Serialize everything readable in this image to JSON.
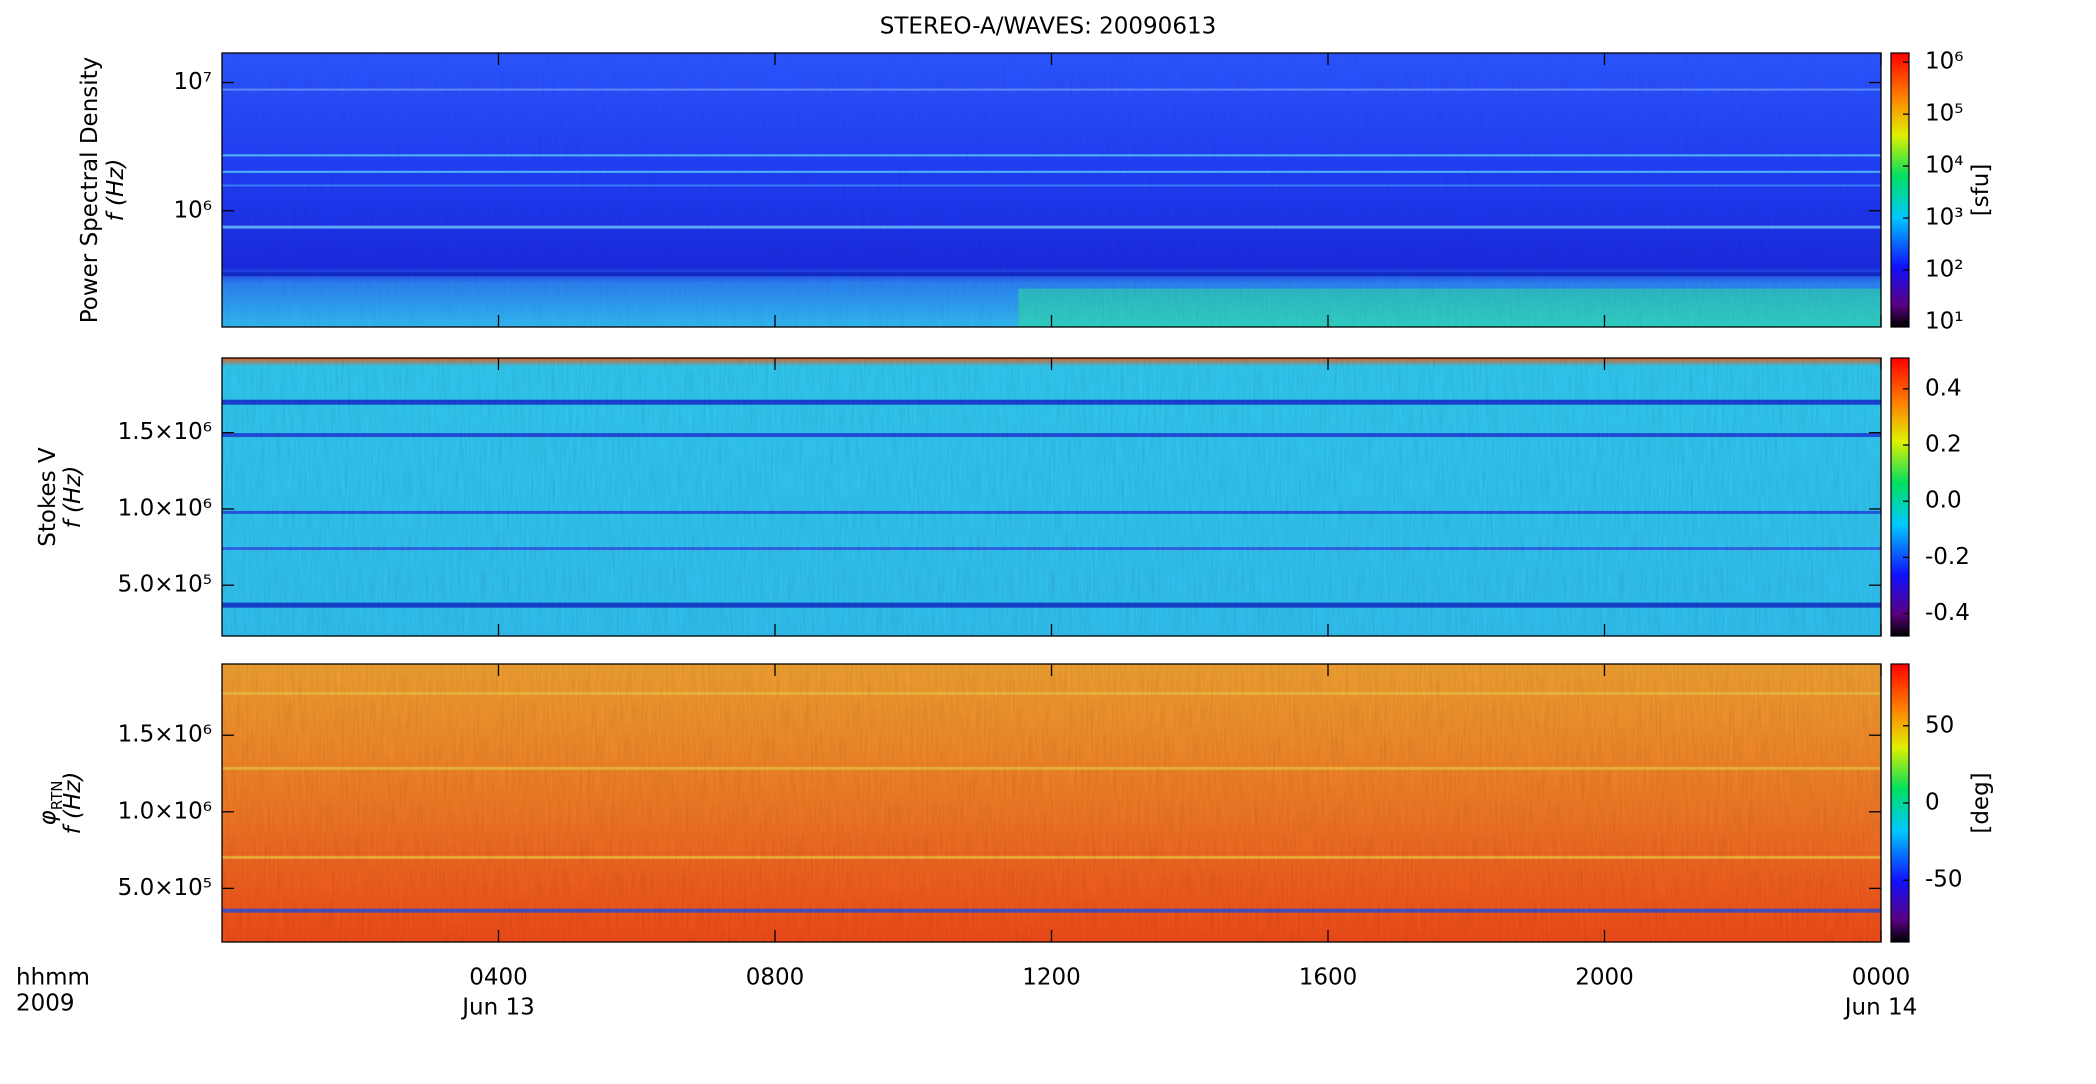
{
  "title": "STEREO-A/WAVES: 20090613",
  "xaxis": {
    "xlim": [
      0,
      24
    ],
    "xticks": [
      {
        "value": 4,
        "label": "0400"
      },
      {
        "value": 8,
        "label": "0800"
      },
      {
        "value": 12,
        "label": "1200"
      },
      {
        "value": 16,
        "label": "1600"
      },
      {
        "value": 20,
        "label": "2000"
      },
      {
        "value": 24,
        "label": "0000"
      }
    ],
    "date_ticks": [
      {
        "value": 4,
        "label": "Jun 13"
      },
      {
        "value": 24,
        "label": "Jun 14"
      }
    ],
    "unit_label": "hhmm",
    "year_label": "2009"
  },
  "chart_data": [
    {
      "type": "heatmap",
      "ylabel": "Power Spectral Density",
      "ylabel2": "f (Hz)",
      "log_y": true,
      "ylim": [
        124000,
        17000000
      ],
      "yticks": [
        {
          "value": 1000000,
          "label": "10⁶"
        },
        {
          "value": 10000000,
          "label": "10⁷"
        }
      ],
      "colorbar": {
        "label": "[sfu]",
        "log": true,
        "clim": [
          8,
          1500000
        ],
        "ticks": [
          {
            "value": 10,
            "label": "10¹"
          },
          {
            "value": 100,
            "label": "10²"
          },
          {
            "value": 1000,
            "label": "10³"
          },
          {
            "value": 10000,
            "label": "10⁴"
          },
          {
            "value": 100000,
            "label": "10⁵"
          },
          {
            "value": 1000000,
            "label": "10⁶"
          }
        ]
      }
    },
    {
      "type": "heatmap",
      "ylabel": "Stokes V",
      "ylabel2": "f (Hz)",
      "log_y": false,
      "ylim": [
        167000,
        1990000
      ],
      "yticks": [
        {
          "value": 500000,
          "label": "5.0×10⁵"
        },
        {
          "value": 1000000,
          "label": "1.0×10⁶"
        },
        {
          "value": 1500000,
          "label": "1.5×10⁶"
        }
      ],
      "colorbar": {
        "log": false,
        "clim": [
          -0.48,
          0.51
        ],
        "ticks": [
          -0.4,
          -0.2,
          {
            "value": 0,
            "label": "0.0"
          },
          0.2,
          0.4
        ]
      }
    },
    {
      "type": "heatmap",
      "ylabel_symbol": "φ",
      "ylabel_subscript": "RTN",
      "ylabel2": "f (Hz)",
      "log_y": false,
      "ylim": [
        150000,
        1965000
      ],
      "yticks": [
        {
          "value": 500000,
          "label": "5.0×10⁵"
        },
        {
          "value": 1000000,
          "label": "1.0×10⁶"
        },
        {
          "value": 1500000,
          "label": "1.5×10⁶"
        }
      ],
      "colorbar": {
        "label": "[deg]",
        "log": false,
        "clim": [
          -90,
          90
        ],
        "ticks": [
          -50,
          0,
          50
        ]
      }
    }
  ]
}
